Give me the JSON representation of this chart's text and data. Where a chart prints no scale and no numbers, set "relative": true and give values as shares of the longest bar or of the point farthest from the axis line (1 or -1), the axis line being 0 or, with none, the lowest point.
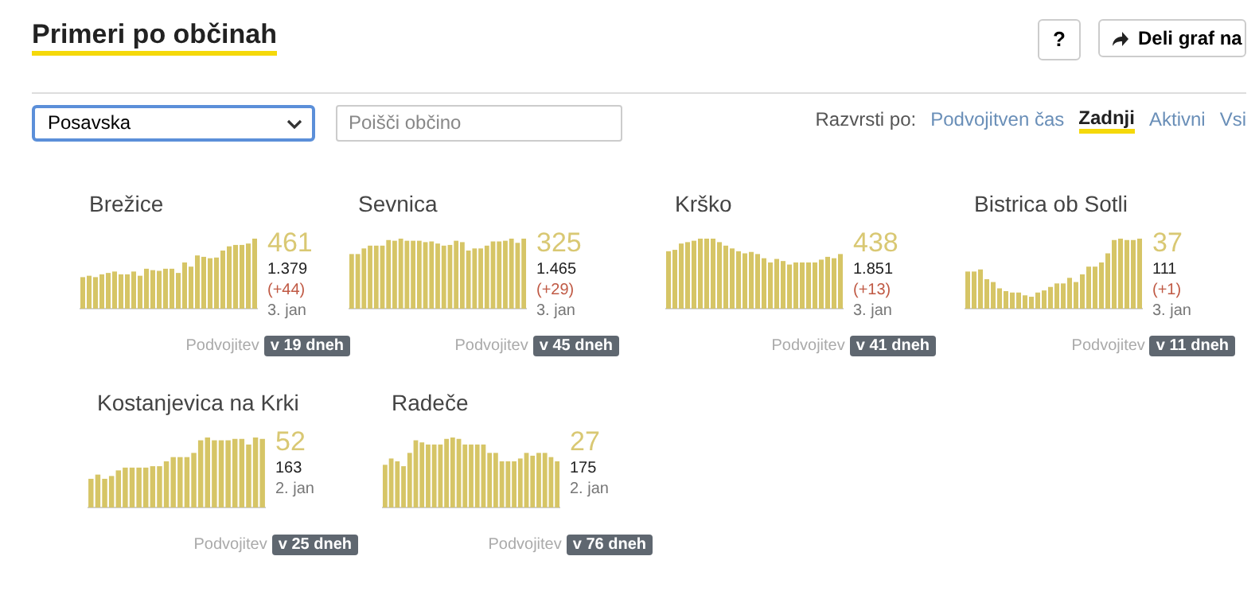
{
  "chart_data": [
    {
      "type": "other",
      "title": "Primeri po občinah",
      "annotations": [
        "?",
        "Deli graf na",
        "Posavska",
        "Poišči občino",
        "Razvrsti po:",
        "Podvojitven čas",
        "Zadnji",
        "Aktivni",
        "Vsi"
      ]
    },
    {
      "type": "bar",
      "title": "Brežice",
      "relative": true,
      "color": "#d6c566",
      "categories": [
        null,
        null,
        null,
        null,
        null,
        null,
        null,
        null,
        null,
        null,
        null,
        null,
        null,
        null,
        null,
        null,
        null,
        null,
        null,
        null,
        null,
        null,
        null,
        null,
        null,
        null,
        null,
        null
      ],
      "values": [
        0.45,
        0.47,
        0.45,
        0.49,
        0.51,
        0.53,
        0.49,
        0.49,
        0.53,
        0.47,
        0.57,
        0.55,
        0.54,
        0.57,
        0.57,
        0.51,
        0.66,
        0.6,
        0.76,
        0.74,
        0.72,
        0.73,
        0.83,
        0.89,
        0.91,
        0.91,
        0.93,
        1
      ],
      "annotations": [
        "461",
        "1.379",
        "(+44)",
        "3. jan",
        "Podvojitev",
        "v 19 dneh"
      ]
    },
    {
      "type": "bar",
      "title": "Sevnica",
      "relative": true,
      "color": "#d6c566",
      "categories": [
        null,
        null,
        null,
        null,
        null,
        null,
        null,
        null,
        null,
        null,
        null,
        null,
        null,
        null,
        null,
        null,
        null,
        null,
        null,
        null,
        null,
        null,
        null,
        null,
        null,
        null,
        null,
        null,
        null
      ],
      "values": [
        0.78,
        0.78,
        0.86,
        0.9,
        0.9,
        0.9,
        0.98,
        0.97,
        1,
        0.97,
        0.97,
        0.97,
        0.95,
        0.96,
        0.93,
        0.9,
        0.91,
        0.97,
        0.95,
        0.83,
        0.86,
        0.86,
        0.9,
        0.96,
        0.96,
        0.97,
        1,
        0.94,
        1
      ],
      "annotations": [
        "325",
        "1.465",
        "(+29)",
        "3. jan",
        "Podvojitev",
        "v 45 dneh"
      ]
    },
    {
      "type": "bar",
      "title": "Krško",
      "relative": true,
      "color": "#d6c566",
      "categories": [
        null,
        null,
        null,
        null,
        null,
        null,
        null,
        null,
        null,
        null,
        null,
        null,
        null,
        null,
        null,
        null,
        null,
        null,
        null,
        null,
        null,
        null,
        null,
        null,
        null,
        null,
        null,
        null
      ],
      "values": [
        0.82,
        0.84,
        0.93,
        0.95,
        0.97,
        1,
        1,
        1,
        0.95,
        0.9,
        0.86,
        0.82,
        0.79,
        0.81,
        0.78,
        0.72,
        0.66,
        0.71,
        0.68,
        0.63,
        0.66,
        0.66,
        0.66,
        0.66,
        0.7,
        0.74,
        0.72,
        0.78
      ],
      "annotations": [
        "438",
        "1.851",
        "(+13)",
        "3. jan",
        "Podvojitev",
        "v 41 dneh"
      ]
    },
    {
      "type": "bar",
      "title": "Bistrica ob Sotli",
      "relative": true,
      "color": "#d6c566",
      "categories": [
        null,
        null,
        null,
        null,
        null,
        null,
        null,
        null,
        null,
        null,
        null,
        null,
        null,
        null,
        null,
        null,
        null,
        null,
        null,
        null,
        null,
        null,
        null,
        null,
        null,
        null,
        null,
        null
      ],
      "values": [
        0.53,
        0.53,
        0.56,
        0.42,
        0.38,
        0.29,
        0.25,
        0.23,
        0.23,
        0.19,
        0.17,
        0.23,
        0.26,
        0.31,
        0.36,
        0.36,
        0.44,
        0.38,
        0.49,
        0.6,
        0.6,
        0.66,
        0.79,
        0.98,
        1,
        0.98,
        0.98,
        1
      ],
      "annotations": [
        "37",
        "111",
        "(+1)",
        "3. jan",
        "Podvojitev",
        "v 11 dneh"
      ]
    },
    {
      "type": "bar",
      "title": "Kostanjevica na Krki",
      "relative": true,
      "color": "#d6c566",
      "categories": [
        null,
        null,
        null,
        null,
        null,
        null,
        null,
        null,
        null,
        null,
        null,
        null,
        null,
        null,
        null,
        null,
        null,
        null,
        null,
        null,
        null,
        null,
        null,
        null,
        null,
        null
      ],
      "values": [
        0.41,
        0.47,
        0.41,
        0.45,
        0.53,
        0.57,
        0.57,
        0.57,
        0.57,
        0.59,
        0.59,
        0.66,
        0.72,
        0.72,
        0.72,
        0.78,
        0.96,
        1,
        0.96,
        0.96,
        0.96,
        0.98,
        0.98,
        0.9,
        1,
        0.98
      ],
      "annotations": [
        "52",
        "163",
        "2. jan",
        "Podvojitev",
        "v 25 dneh"
      ]
    },
    {
      "type": "bar",
      "title": "Radeče",
      "relative": true,
      "color": "#d6c566",
      "categories": [
        null,
        null,
        null,
        null,
        null,
        null,
        null,
        null,
        null,
        null,
        null,
        null,
        null,
        null,
        null,
        null,
        null,
        null,
        null,
        null,
        null,
        null,
        null,
        null,
        null,
        null,
        null,
        null,
        null
      ],
      "values": [
        0.61,
        0.7,
        0.66,
        0.59,
        0.78,
        0.96,
        0.93,
        0.9,
        0.9,
        0.9,
        0.98,
        1,
        0.98,
        0.9,
        0.9,
        0.9,
        0.9,
        0.78,
        0.78,
        0.66,
        0.66,
        0.66,
        0.7,
        0.78,
        0.74,
        0.78,
        0.78,
        0.72,
        0.66
      ],
      "annotations": [
        "27",
        "175",
        "2. jan",
        "Podvojitev",
        "v 76 dneh"
      ]
    }
  ]
}
